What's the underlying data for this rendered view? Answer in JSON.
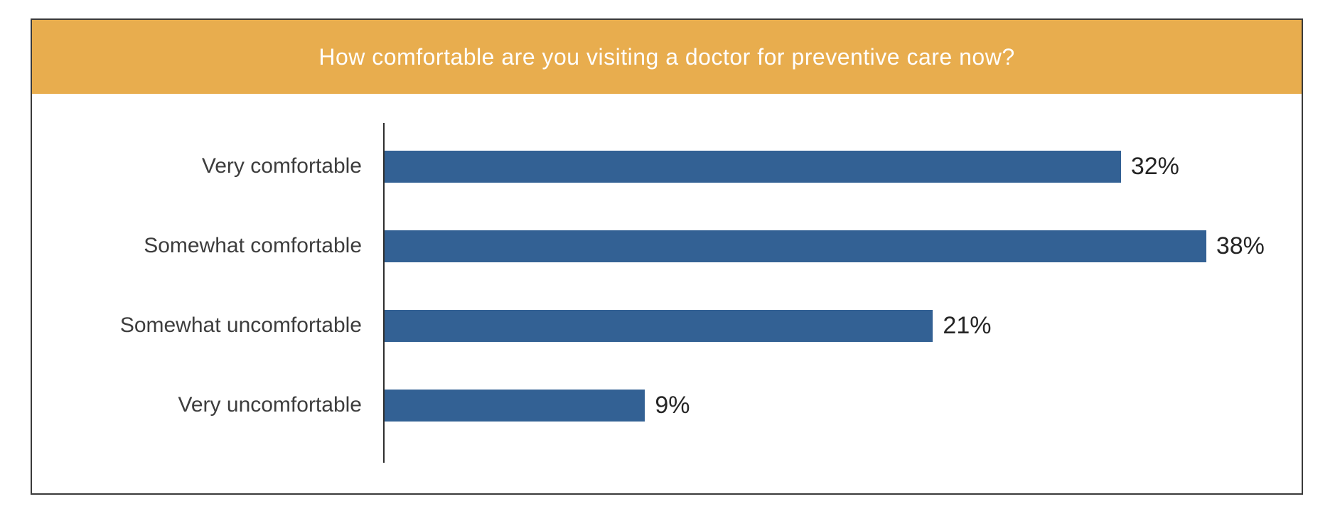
{
  "header": {
    "title": "How comfortable are you visiting a doctor for preventive care now?",
    "background": "#e8ad4e",
    "text_color": "#ffffff"
  },
  "chart_data": {
    "type": "bar",
    "orientation": "horizontal",
    "title": "How comfortable are you visiting a doctor for preventive care now?",
    "categories": [
      "Very comfortable",
      "Somewhat comfortable",
      "Somewhat uncomfortable",
      "Very uncomfortable"
    ],
    "values": [
      32,
      38,
      21,
      9
    ],
    "value_labels": [
      "32%",
      "38%",
      "21%",
      "9%"
    ],
    "xlabel": "",
    "ylabel": "",
    "grid": false,
    "legend": "none",
    "bar_color": "#336194",
    "axis_line_color": "#2e2e2e",
    "frame_border_color": "#3a3a3a",
    "label_color": "#3d3d3d",
    "value_color": "#252525",
    "display": {
      "note": "visual bar lengths as fraction of plot width in source image (not proportional to values)",
      "bar_widths": [
        "80.3%",
        "89.6%",
        "59.8%",
        "28.4%"
      ]
    }
  }
}
